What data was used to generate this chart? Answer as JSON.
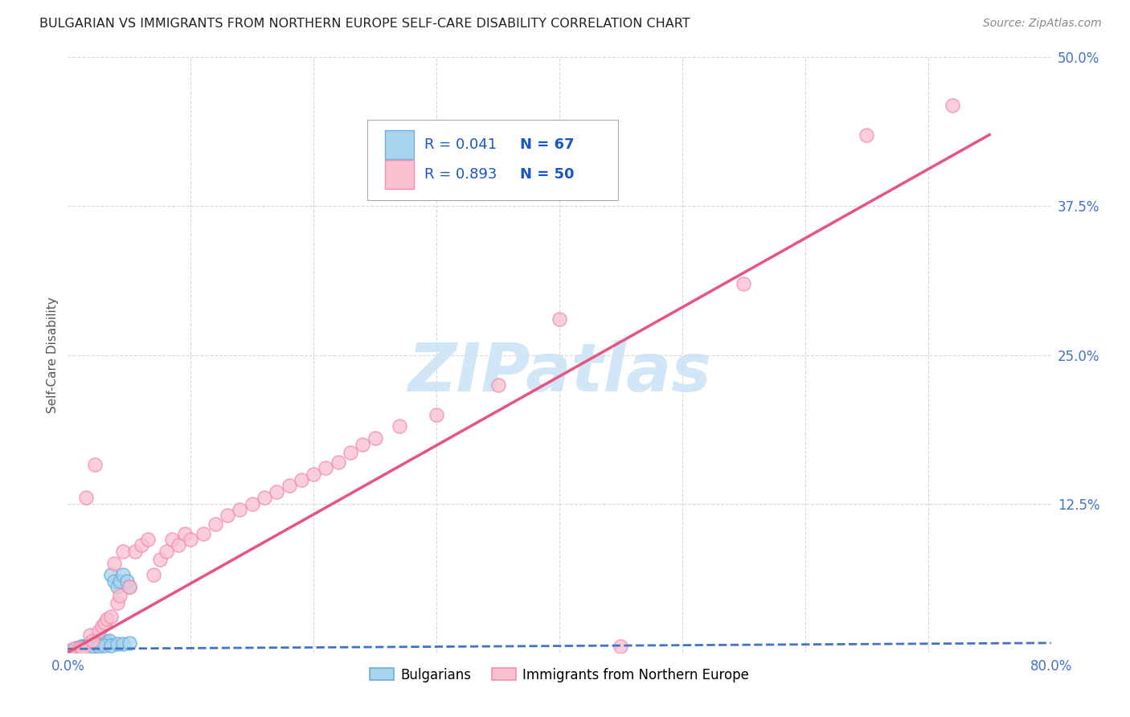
{
  "title": "BULGARIAN VS IMMIGRANTS FROM NORTHERN EUROPE SELF-CARE DISABILITY CORRELATION CHART",
  "source": "Source: ZipAtlas.com",
  "ylabel": "Self-Care Disability",
  "xlim": [
    0.0,
    0.8
  ],
  "ylim": [
    0.0,
    0.5
  ],
  "grid_color": "#d8d8d8",
  "bg_color": "#ffffff",
  "blue_scatter_color": "#a8d4f0",
  "blue_edge_color": "#6baed6",
  "pink_scatter_color": "#f9c0d0",
  "pink_edge_color": "#f48fb1",
  "blue_trend_color": "#4472c4",
  "pink_trend_color": "#e75480",
  "axis_label_color": "#4472c4",
  "title_color": "#222222",
  "source_color": "#888888",
  "ylabel_color": "#555555",
  "legend_R_color": "#1a56c4",
  "legend_N_color": "#1a56c4",
  "watermark_color": "#cce4f5",
  "legend_label_blue": "Bulgarians",
  "legend_label_pink": "Immigrants from Northern Europe",
  "legend_R_blue": "R = 0.041",
  "legend_N_blue": "N = 67",
  "legend_R_pink": "R = 0.893",
  "legend_N_pink": "N = 50",
  "watermark": "ZIPatlas",
  "blue_scatter_x": [
    0.002,
    0.003,
    0.004,
    0.005,
    0.005,
    0.006,
    0.007,
    0.007,
    0.008,
    0.008,
    0.009,
    0.009,
    0.01,
    0.01,
    0.011,
    0.011,
    0.012,
    0.012,
    0.013,
    0.013,
    0.014,
    0.014,
    0.015,
    0.015,
    0.016,
    0.016,
    0.017,
    0.018,
    0.018,
    0.019,
    0.02,
    0.021,
    0.022,
    0.023,
    0.024,
    0.025,
    0.026,
    0.027,
    0.028,
    0.03,
    0.031,
    0.032,
    0.034,
    0.035,
    0.038,
    0.04,
    0.042,
    0.045,
    0.048,
    0.05,
    0.001,
    0.002,
    0.003,
    0.004,
    0.006,
    0.008,
    0.01,
    0.012,
    0.015,
    0.018,
    0.02,
    0.025,
    0.03,
    0.035,
    0.04,
    0.045,
    0.05
  ],
  "blue_scatter_y": [
    0.001,
    0.002,
    0.001,
    0.002,
    0.003,
    0.002,
    0.003,
    0.004,
    0.002,
    0.003,
    0.003,
    0.004,
    0.002,
    0.004,
    0.003,
    0.005,
    0.003,
    0.004,
    0.003,
    0.005,
    0.004,
    0.005,
    0.004,
    0.006,
    0.004,
    0.006,
    0.005,
    0.006,
    0.007,
    0.005,
    0.005,
    0.006,
    0.007,
    0.006,
    0.007,
    0.007,
    0.008,
    0.008,
    0.009,
    0.008,
    0.009,
    0.008,
    0.01,
    0.065,
    0.06,
    0.055,
    0.06,
    0.065,
    0.06,
    0.055,
    0.001,
    0.001,
    0.002,
    0.001,
    0.002,
    0.002,
    0.003,
    0.003,
    0.004,
    0.004,
    0.005,
    0.005,
    0.006,
    0.006,
    0.007,
    0.007,
    0.008
  ],
  "pink_scatter_x": [
    0.005,
    0.01,
    0.012,
    0.015,
    0.018,
    0.02,
    0.022,
    0.025,
    0.028,
    0.03,
    0.032,
    0.035,
    0.038,
    0.04,
    0.042,
    0.045,
    0.05,
    0.055,
    0.06,
    0.065,
    0.07,
    0.075,
    0.08,
    0.085,
    0.09,
    0.095,
    0.1,
    0.11,
    0.12,
    0.13,
    0.14,
    0.15,
    0.16,
    0.17,
    0.18,
    0.19,
    0.2,
    0.21,
    0.22,
    0.23,
    0.24,
    0.25,
    0.27,
    0.3,
    0.35,
    0.4,
    0.45,
    0.55,
    0.65,
    0.72
  ],
  "pink_scatter_y": [
    0.003,
    0.004,
    0.003,
    0.13,
    0.015,
    0.01,
    0.158,
    0.018,
    0.022,
    0.025,
    0.028,
    0.03,
    0.075,
    0.042,
    0.048,
    0.085,
    0.055,
    0.085,
    0.09,
    0.095,
    0.065,
    0.078,
    0.085,
    0.095,
    0.09,
    0.1,
    0.095,
    0.1,
    0.108,
    0.115,
    0.12,
    0.125,
    0.13,
    0.135,
    0.14,
    0.145,
    0.15,
    0.155,
    0.16,
    0.168,
    0.175,
    0.18,
    0.19,
    0.2,
    0.225,
    0.28,
    0.005,
    0.31,
    0.435,
    0.46
  ],
  "blue_trend_x": [
    0.0,
    0.8
  ],
  "blue_trend_y": [
    0.003,
    0.008
  ],
  "pink_trend_x": [
    0.0,
    0.75
  ],
  "pink_trend_y": [
    0.0,
    0.435
  ]
}
